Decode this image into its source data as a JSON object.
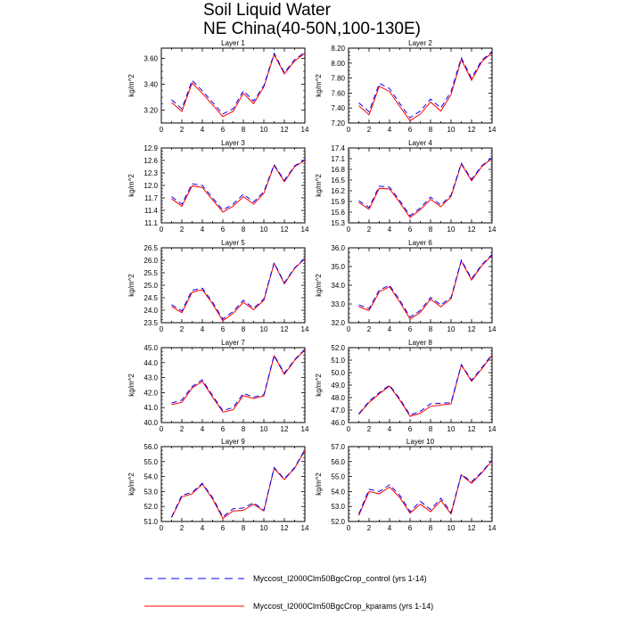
{
  "title_line1": "Soil Liquid Water",
  "title_line2": "NE China(40-50N,100-130E)",
  "legend": [
    {
      "label": "Myccost_I2000Clm50BgcCrop_control (yrs 1-14)",
      "color": "#0000ff",
      "dash": "dashed"
    },
    {
      "label": "Myccost_I2000Clm50BgcCrop_kparams (yrs 1-14)",
      "color": "#ff0000",
      "dash": "solid"
    }
  ],
  "chart_data": [
    {
      "type": "line",
      "title": "Layer 1",
      "ylabel": "kg/m^2",
      "xlim": [
        0,
        14
      ],
      "ylim": [
        3.1,
        3.68
      ],
      "xticks": [
        0,
        2,
        4,
        6,
        8,
        10,
        12,
        14
      ],
      "yticks": [
        "3.20",
        "3.40",
        "3.60"
      ],
      "x": [
        1,
        2,
        3,
        4,
        5,
        6,
        7,
        8,
        9,
        10,
        11,
        12,
        13,
        14
      ],
      "series": [
        {
          "name": "Myccost_I2000Clm50BgcCrop_control (yrs 1-14)",
          "values": [
            3.28,
            3.21,
            3.43,
            3.35,
            3.26,
            3.17,
            3.21,
            3.35,
            3.27,
            3.39,
            3.64,
            3.49,
            3.59,
            3.65
          ]
        },
        {
          "name": "Myccost_I2000Clm50BgcCrop_kparams (yrs 1-14)",
          "values": [
            3.26,
            3.19,
            3.41,
            3.33,
            3.24,
            3.15,
            3.19,
            3.33,
            3.25,
            3.38,
            3.63,
            3.48,
            3.58,
            3.64
          ]
        }
      ]
    },
    {
      "type": "line",
      "title": "Layer 2",
      "ylabel": "kg/m^2",
      "xlim": [
        0,
        14
      ],
      "ylim": [
        7.2,
        8.2
      ],
      "xticks": [
        0,
        2,
        4,
        6,
        8,
        10,
        12,
        14
      ],
      "yticks": [
        "7.20",
        "7.40",
        "7.60",
        "7.80",
        "8.00",
        "8.20"
      ],
      "x": [
        1,
        2,
        3,
        4,
        5,
        6,
        7,
        8,
        9,
        10,
        11,
        12,
        13,
        14
      ],
      "series": [
        {
          "name": "Myccost_I2000Clm50BgcCrop_control (yrs 1-14)",
          "values": [
            7.47,
            7.35,
            7.73,
            7.66,
            7.46,
            7.27,
            7.36,
            7.52,
            7.4,
            7.62,
            8.07,
            7.8,
            8.04,
            8.15
          ]
        },
        {
          "name": "Myccost_I2000Clm50BgcCrop_kparams (yrs 1-14)",
          "values": [
            7.43,
            7.31,
            7.69,
            7.62,
            7.42,
            7.23,
            7.32,
            7.48,
            7.36,
            7.58,
            8.05,
            7.77,
            8.02,
            8.14
          ]
        }
      ]
    },
    {
      "type": "line",
      "title": "Layer 3",
      "ylabel": "kg/m^2",
      "xlim": [
        0,
        14
      ],
      "ylim": [
        11.1,
        12.9
      ],
      "xticks": [
        0,
        2,
        4,
        6,
        8,
        10,
        12,
        14
      ],
      "yticks": [
        "11.1",
        "11.4",
        "11.7",
        "12.0",
        "12.3",
        "12.6",
        "12.9"
      ],
      "x": [
        1,
        2,
        3,
        4,
        5,
        6,
        7,
        8,
        9,
        10,
        11,
        12,
        13,
        14
      ],
      "series": [
        {
          "name": "Myccost_I2000Clm50BgcCrop_control (yrs 1-14)",
          "values": [
            11.73,
            11.55,
            12.04,
            12.0,
            11.7,
            11.41,
            11.55,
            11.79,
            11.6,
            11.85,
            12.5,
            12.12,
            12.47,
            12.62
          ]
        },
        {
          "name": "Myccost_I2000Clm50BgcCrop_kparams (yrs 1-14)",
          "values": [
            11.68,
            11.5,
            11.99,
            11.95,
            11.65,
            11.36,
            11.5,
            11.73,
            11.55,
            11.81,
            12.48,
            12.09,
            12.45,
            12.6
          ]
        }
      ]
    },
    {
      "type": "line",
      "title": "Layer 4",
      "ylabel": "kg/m^2",
      "xlim": [
        0,
        14
      ],
      "ylim": [
        15.3,
        17.4
      ],
      "xticks": [
        0,
        2,
        4,
        6,
        8,
        10,
        12,
        14
      ],
      "yticks": [
        "15.3",
        "15.6",
        "15.9",
        "16.2",
        "16.5",
        "16.8",
        "17.1",
        "17.4"
      ],
      "x": [
        1,
        2,
        3,
        4,
        5,
        6,
        7,
        8,
        9,
        10,
        11,
        12,
        13,
        14
      ],
      "series": [
        {
          "name": "Myccost_I2000Clm50BgcCrop_control (yrs 1-14)",
          "values": [
            15.92,
            15.73,
            16.33,
            16.3,
            15.92,
            15.5,
            15.72,
            16.02,
            15.8,
            16.08,
            16.97,
            16.52,
            16.9,
            17.13
          ]
        },
        {
          "name": "Myccost_I2000Clm50BgcCrop_kparams (yrs 1-14)",
          "values": [
            15.87,
            15.68,
            16.27,
            16.25,
            15.87,
            15.45,
            15.67,
            15.96,
            15.75,
            16.04,
            16.95,
            16.48,
            16.88,
            17.11
          ]
        }
      ]
    },
    {
      "type": "line",
      "title": "Layer 5",
      "ylabel": "kg/m^2",
      "xlim": [
        0,
        14
      ],
      "ylim": [
        23.5,
        26.5
      ],
      "xticks": [
        0,
        2,
        4,
        6,
        8,
        10,
        12,
        14
      ],
      "yticks": [
        "23.5",
        "24.0",
        "24.5",
        "25.0",
        "25.5",
        "26.0",
        "26.5"
      ],
      "x": [
        1,
        2,
        3,
        4,
        5,
        6,
        7,
        8,
        9,
        10,
        11,
        12,
        13,
        14
      ],
      "series": [
        {
          "name": "Myccost_I2000Clm50BgcCrop_control (yrs 1-14)",
          "values": [
            24.22,
            23.97,
            24.8,
            24.88,
            24.32,
            23.65,
            23.95,
            24.4,
            24.08,
            24.45,
            25.9,
            25.1,
            25.7,
            26.08
          ]
        },
        {
          "name": "Myccost_I2000Clm50BgcCrop_kparams (yrs 1-14)",
          "values": [
            24.15,
            23.9,
            24.72,
            24.82,
            24.25,
            23.58,
            23.87,
            24.32,
            24.02,
            24.4,
            25.88,
            25.06,
            25.68,
            26.06
          ]
        }
      ]
    },
    {
      "type": "line",
      "title": "Layer 6",
      "ylabel": "kg/m^2",
      "xlim": [
        0,
        14
      ],
      "ylim": [
        32.0,
        36.0
      ],
      "xticks": [
        0,
        2,
        4,
        6,
        8,
        10,
        12,
        14
      ],
      "yticks": [
        "32.0",
        "33.0",
        "34.0",
        "35.0",
        "36.0"
      ],
      "x": [
        1,
        2,
        3,
        4,
        5,
        6,
        7,
        8,
        9,
        10,
        11,
        12,
        13,
        14
      ],
      "series": [
        {
          "name": "Myccost_I2000Clm50BgcCrop_control (yrs 1-14)",
          "values": [
            32.95,
            32.75,
            33.75,
            34.0,
            33.2,
            32.3,
            32.65,
            33.35,
            32.95,
            33.35,
            35.35,
            34.35,
            35.1,
            35.65
          ]
        },
        {
          "name": "Myccost_I2000Clm50BgcCrop_kparams (yrs 1-14)",
          "values": [
            32.85,
            32.65,
            33.65,
            33.92,
            33.1,
            32.2,
            32.55,
            33.25,
            32.85,
            33.28,
            35.3,
            34.28,
            35.05,
            35.6
          ]
        }
      ]
    },
    {
      "type": "line",
      "title": "Layer 7",
      "ylabel": "kg/m^2",
      "xlim": [
        0,
        14
      ],
      "ylim": [
        40.0,
        45.0
      ],
      "xticks": [
        0,
        2,
        4,
        6,
        8,
        10,
        12,
        14
      ],
      "yticks": [
        "40.0",
        "41.0",
        "42.0",
        "43.0",
        "44.0",
        "45.0"
      ],
      "x": [
        1,
        2,
        3,
        4,
        5,
        6,
        7,
        8,
        9,
        10,
        11,
        12,
        13,
        14
      ],
      "series": [
        {
          "name": "Myccost_I2000Clm50BgcCrop_control (yrs 1-14)",
          "values": [
            41.3,
            41.5,
            42.4,
            42.85,
            41.8,
            40.8,
            41.0,
            41.95,
            41.7,
            41.85,
            44.5,
            43.3,
            44.2,
            44.9
          ]
        },
        {
          "name": "Myccost_I2000Clm50BgcCrop_kparams (yrs 1-14)",
          "values": [
            41.2,
            41.35,
            42.3,
            42.75,
            41.7,
            40.7,
            40.85,
            41.8,
            41.6,
            41.78,
            44.45,
            43.22,
            44.15,
            44.85
          ]
        }
      ]
    },
    {
      "type": "line",
      "title": "Layer 8",
      "ylabel": "kg/m^2",
      "xlim": [
        0,
        14
      ],
      "ylim": [
        46.0,
        52.0
      ],
      "xticks": [
        0,
        2,
        4,
        6,
        8,
        10,
        12,
        14
      ],
      "yticks": [
        "46.0",
        "47.0",
        "48.0",
        "49.0",
        "50.0",
        "51.0",
        "52.0"
      ],
      "x": [
        1,
        2,
        3,
        4,
        5,
        6,
        7,
        8,
        9,
        10,
        11,
        12,
        13,
        14
      ],
      "series": [
        {
          "name": "Myccost_I2000Clm50BgcCrop_control (yrs 1-14)",
          "values": [
            46.7,
            47.7,
            48.4,
            49.0,
            47.9,
            46.6,
            46.9,
            47.5,
            47.55,
            47.6,
            50.65,
            49.4,
            50.4,
            51.45
          ]
        },
        {
          "name": "Myccost_I2000Clm50BgcCrop_kparams (yrs 1-14)",
          "values": [
            46.65,
            47.6,
            48.3,
            48.92,
            47.8,
            46.5,
            46.75,
            47.3,
            47.4,
            47.5,
            50.6,
            49.3,
            50.3,
            51.4
          ]
        }
      ]
    },
    {
      "type": "line",
      "title": "Layer 9",
      "ylabel": "kg/m^2",
      "xlim": [
        0,
        14
      ],
      "ylim": [
        51.0,
        56.0
      ],
      "xticks": [
        0,
        2,
        4,
        6,
        8,
        10,
        12,
        14
      ],
      "yticks": [
        "51.0",
        "52.0",
        "53.0",
        "54.0",
        "55.0",
        "56.0"
      ],
      "x": [
        1,
        2,
        3,
        4,
        5,
        6,
        7,
        8,
        9,
        10,
        11,
        12,
        13,
        14
      ],
      "series": [
        {
          "name": "Myccost_I2000Clm50BgcCrop_control (yrs 1-14)",
          "values": [
            51.3,
            52.75,
            52.95,
            53.55,
            52.6,
            51.3,
            51.85,
            51.9,
            52.25,
            51.75,
            54.6,
            53.85,
            54.6,
            55.8
          ]
        },
        {
          "name": "Myccost_I2000Clm50BgcCrop_kparams (yrs 1-14)",
          "values": [
            51.25,
            52.65,
            52.85,
            53.5,
            52.5,
            51.2,
            51.7,
            51.75,
            52.15,
            51.7,
            54.55,
            53.8,
            54.55,
            55.75
          ]
        }
      ]
    },
    {
      "type": "line",
      "title": "Layer 10",
      "ylabel": "kg/m^2",
      "xlim": [
        0,
        14
      ],
      "ylim": [
        52.0,
        57.0
      ],
      "xticks": [
        0,
        2,
        4,
        6,
        8,
        10,
        12,
        14
      ],
      "yticks": [
        "52.0",
        "53.0",
        "54.0",
        "55.0",
        "56.0",
        "57.0"
      ],
      "x": [
        1,
        2,
        3,
        4,
        5,
        6,
        7,
        8,
        9,
        10,
        11,
        12,
        13,
        14
      ],
      "series": [
        {
          "name": "Myccost_I2000Clm50BgcCrop_control (yrs 1-14)",
          "values": [
            52.5,
            54.15,
            54.0,
            54.45,
            53.75,
            52.65,
            53.35,
            52.8,
            53.55,
            52.6,
            55.15,
            54.65,
            55.3,
            56.1
          ]
        },
        {
          "name": "Myccost_I2000Clm50BgcCrop_kparams (yrs 1-14)",
          "values": [
            52.4,
            54.0,
            53.85,
            54.3,
            53.6,
            52.55,
            53.15,
            52.65,
            53.4,
            52.5,
            55.1,
            54.55,
            55.25,
            56.05
          ]
        }
      ]
    }
  ]
}
